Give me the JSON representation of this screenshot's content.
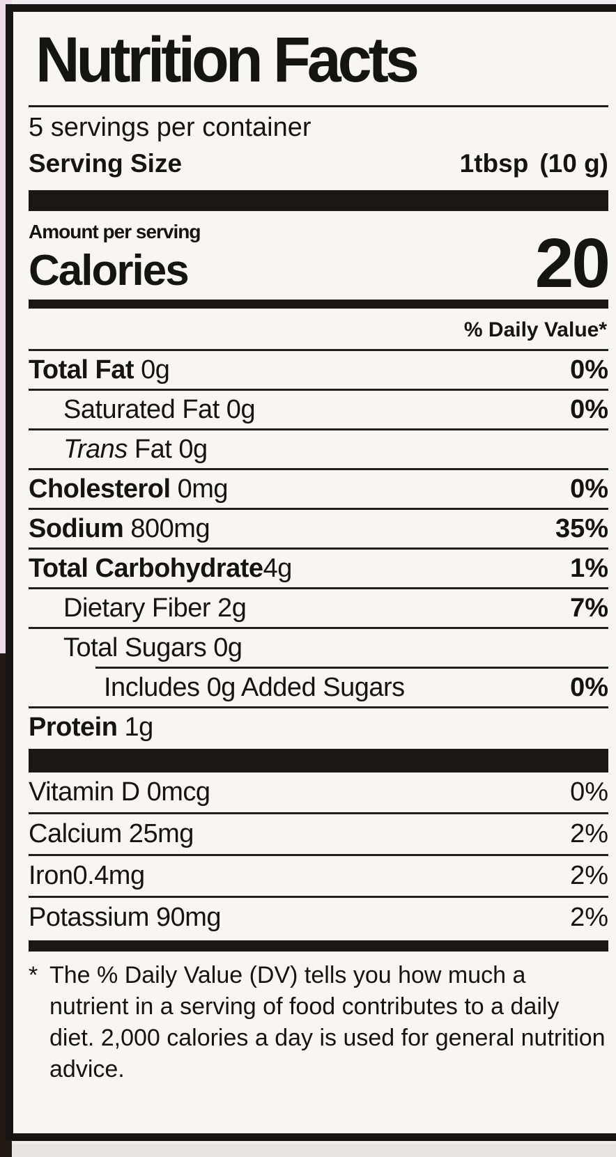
{
  "label": {
    "title": "Nutrition Facts",
    "servings_line": "5 servings per container",
    "serving_size_label": "Serving Size",
    "serving_size_qty": "1tbsp",
    "serving_size_weight": "(10 g)",
    "amount_per_serving": "Amount per serving",
    "calories_label": "Calories",
    "calories_value": "20",
    "daily_value_header": "% Daily Value*",
    "nutrients": [
      {
        "italic": "",
        "name": "Total Fat",
        "amount": " 0g",
        "dv": "0%"
      },
      {
        "italic": "",
        "name": "Saturated Fat",
        "amount": " 0g",
        "dv": "0%"
      },
      {
        "italic": "Trans",
        "name": " Fat",
        "amount": " 0g",
        "dv": ""
      },
      {
        "italic": "",
        "name": "Cholesterol",
        "amount": " 0mg",
        "dv": "0%"
      },
      {
        "italic": "",
        "name": "Sodium",
        "amount": " 800mg",
        "dv": "35%"
      },
      {
        "italic": "",
        "name": "Total Carbohydrate",
        "amount": "4g",
        "dv": "1%"
      },
      {
        "italic": "",
        "name": "Dietary Fiber",
        "amount": " 2g",
        "dv": "7%"
      },
      {
        "italic": "",
        "name": "Total Sugars",
        "amount": " 0g",
        "dv": ""
      },
      {
        "italic": "",
        "name": "Includes 0g Added Sugars",
        "amount": "",
        "dv": "0%"
      },
      {
        "italic": "",
        "name": "Protein",
        "amount": " 1g",
        "dv": ""
      }
    ],
    "vitamins": [
      {
        "name": "Vitamin D 0mcg",
        "dv": "0%"
      },
      {
        "name": "Calcium 25mg",
        "dv": "2%"
      },
      {
        "name": "Iron0.4mg",
        "dv": "2%"
      },
      {
        "name": "Potassium 90mg",
        "dv": "2%"
      }
    ],
    "footnote_marker": "*",
    "footnote": "The % Daily Value (DV) tells you how much a nutrient in a serving of food contributes to a daily diet. 2,000 calories a day is used for general nutrition advice."
  },
  "colors": {
    "ink": "#141413",
    "label_bg": "#f8f6f2",
    "bar": "#191817",
    "outside_pink": "#eddbe7",
    "outside_dark": "#241a15"
  }
}
